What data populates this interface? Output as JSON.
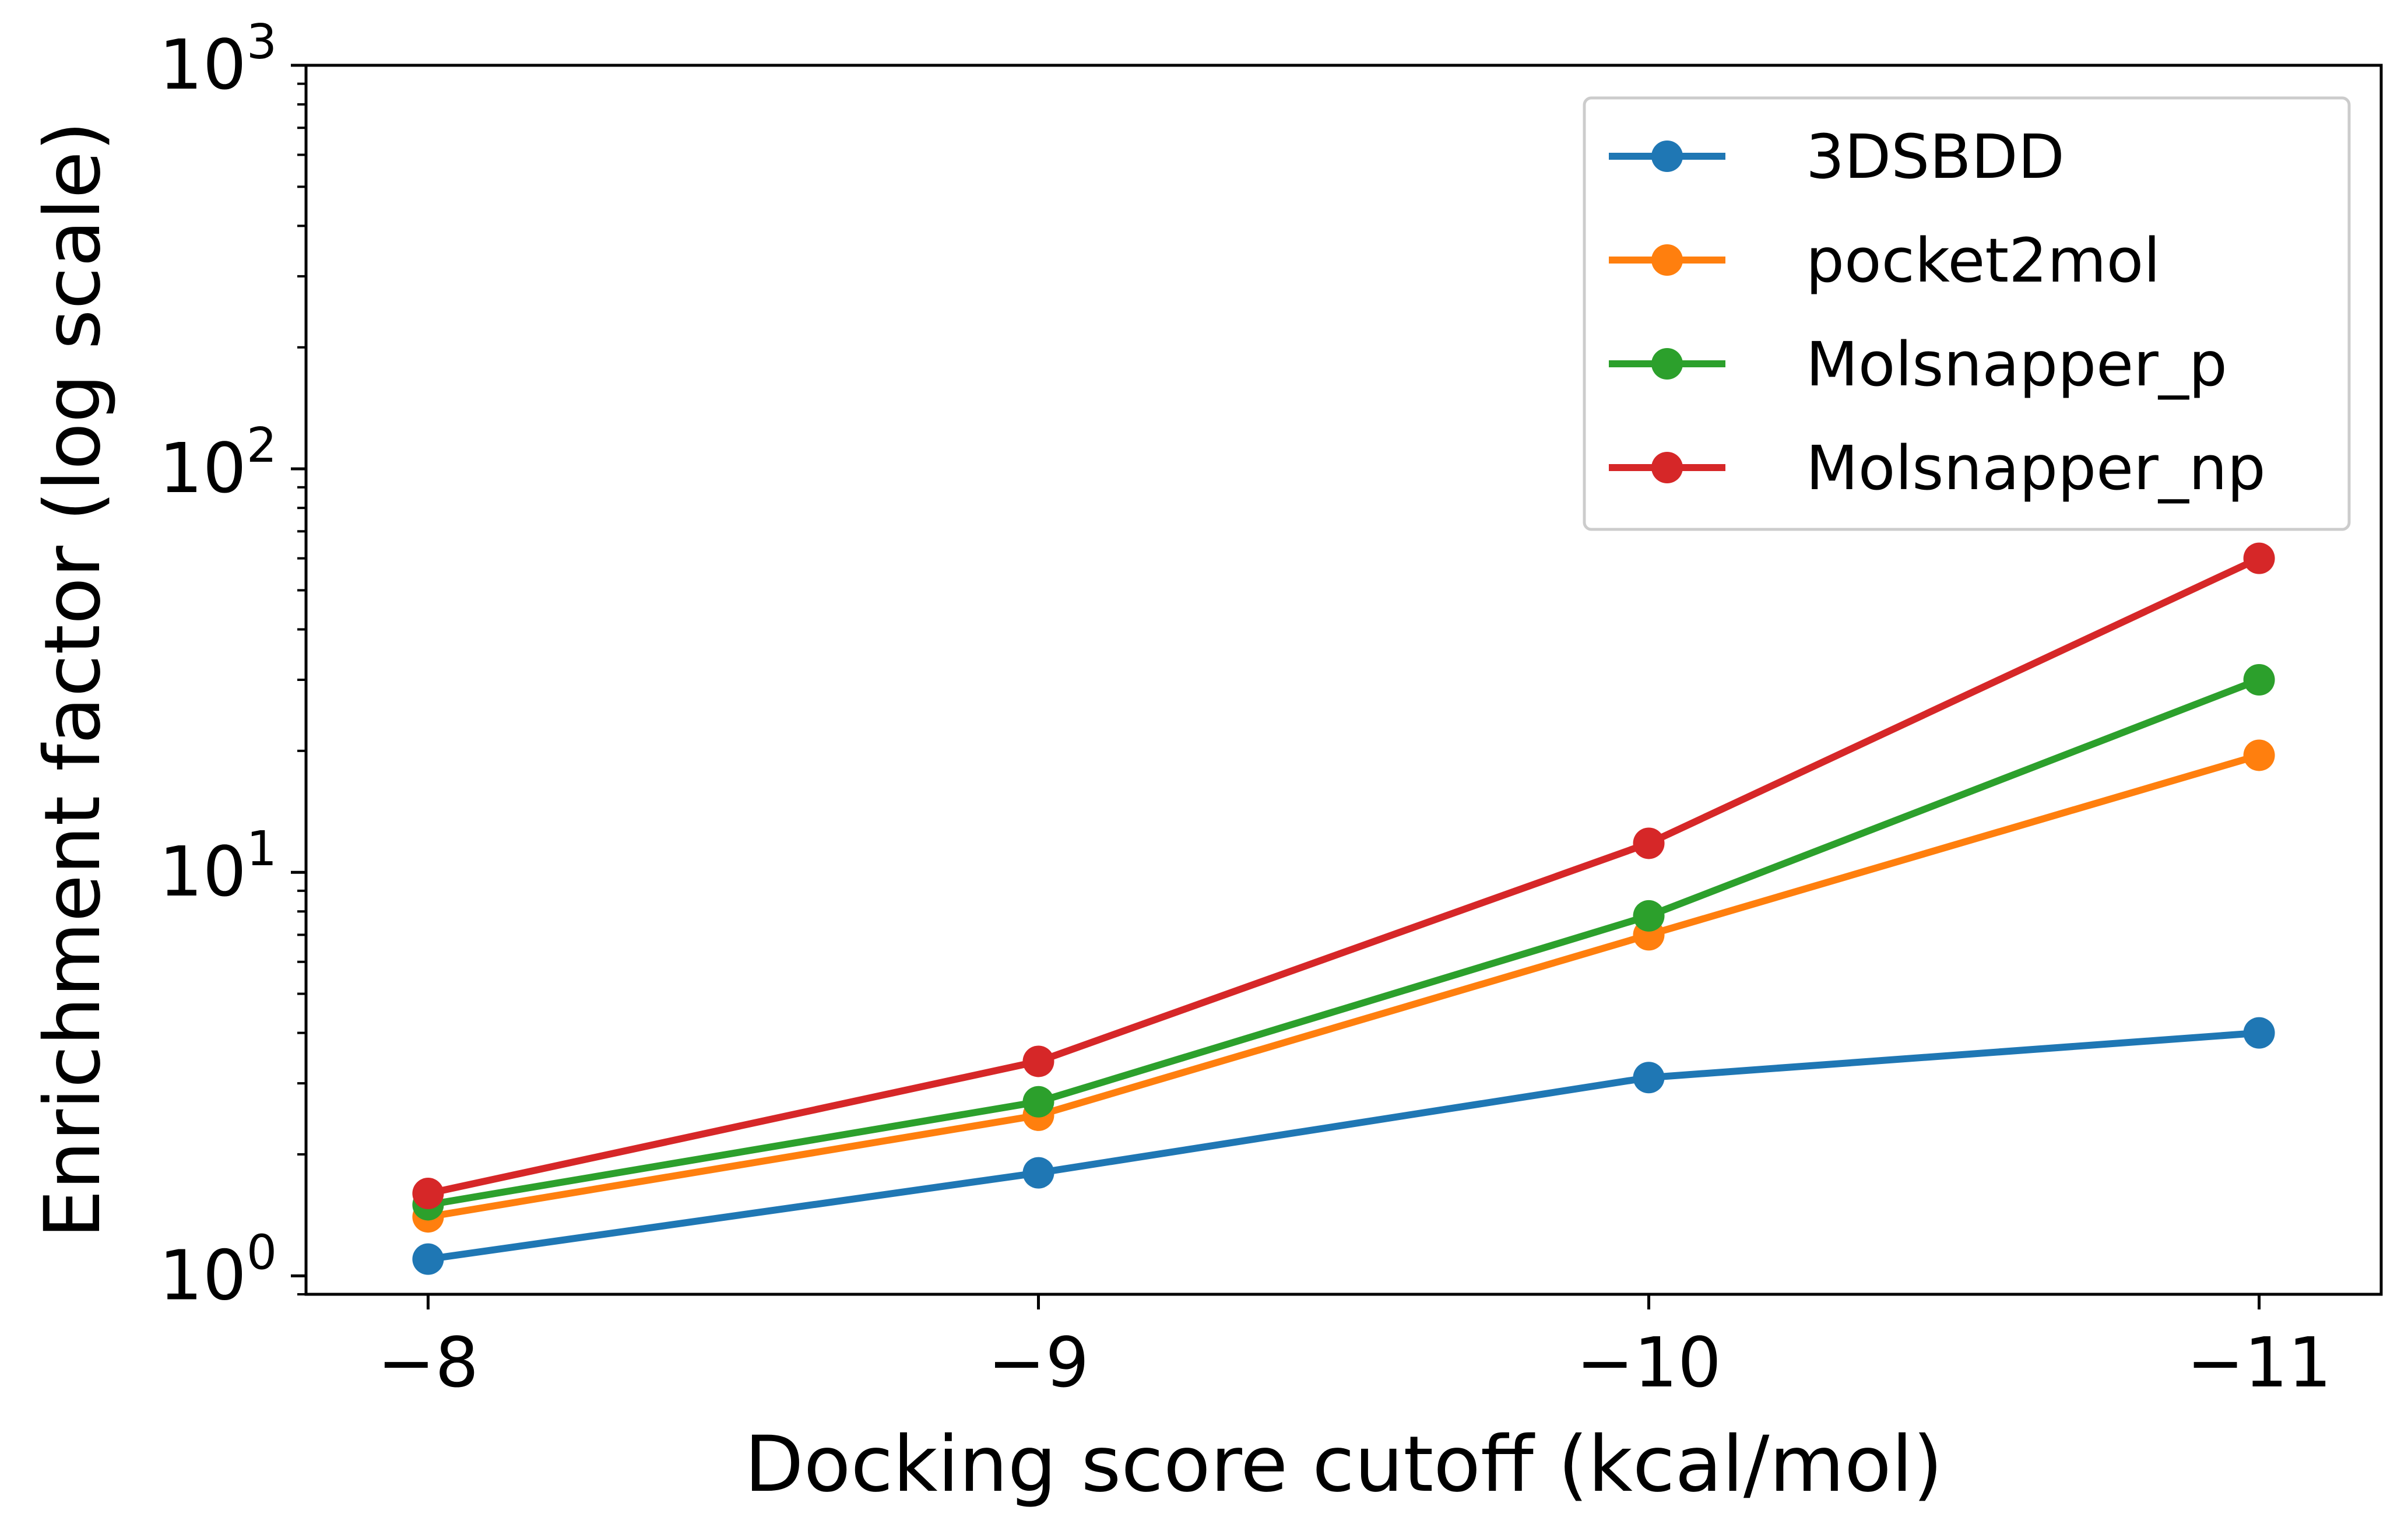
{
  "chart_data": {
    "type": "line",
    "title": "",
    "xlabel": "Docking score cutoff (kcal/mol)",
    "ylabel": "Enrichment factor (log scale)",
    "x": [
      -8,
      -9,
      -10,
      -11
    ],
    "x_tick_labels": [
      "−8",
      "−9",
      "−10",
      "−11"
    ],
    "x_axis_inverted": true,
    "xlim": [
      -7.8,
      -11.2
    ],
    "y_scale": "log",
    "ylim": [
      0.9,
      1000
    ],
    "y_ticks": [
      {
        "value": 1,
        "base": "10",
        "exp": "0"
      },
      {
        "value": 10,
        "base": "10",
        "exp": "1"
      },
      {
        "value": 100,
        "base": "10",
        "exp": "2"
      },
      {
        "value": 1000,
        "base": "10",
        "exp": "3"
      }
    ],
    "grid": false,
    "legend_position": "top-right",
    "series": [
      {
        "name": "3DSBDD",
        "color": "#1f77b4",
        "values": [
          1.1,
          1.8,
          3.1,
          4.0
        ]
      },
      {
        "name": "pocket2mol",
        "color": "#ff7f0e",
        "values": [
          1.4,
          2.5,
          7.0,
          19.5
        ]
      },
      {
        "name": "Molsnapper_p",
        "color": "#2ca02c",
        "values": [
          1.5,
          2.7,
          7.8,
          30.0
        ]
      },
      {
        "name": "Molsnapper_np",
        "color": "#d62728",
        "values": [
          1.6,
          3.4,
          11.8,
          60.0
        ]
      }
    ]
  }
}
